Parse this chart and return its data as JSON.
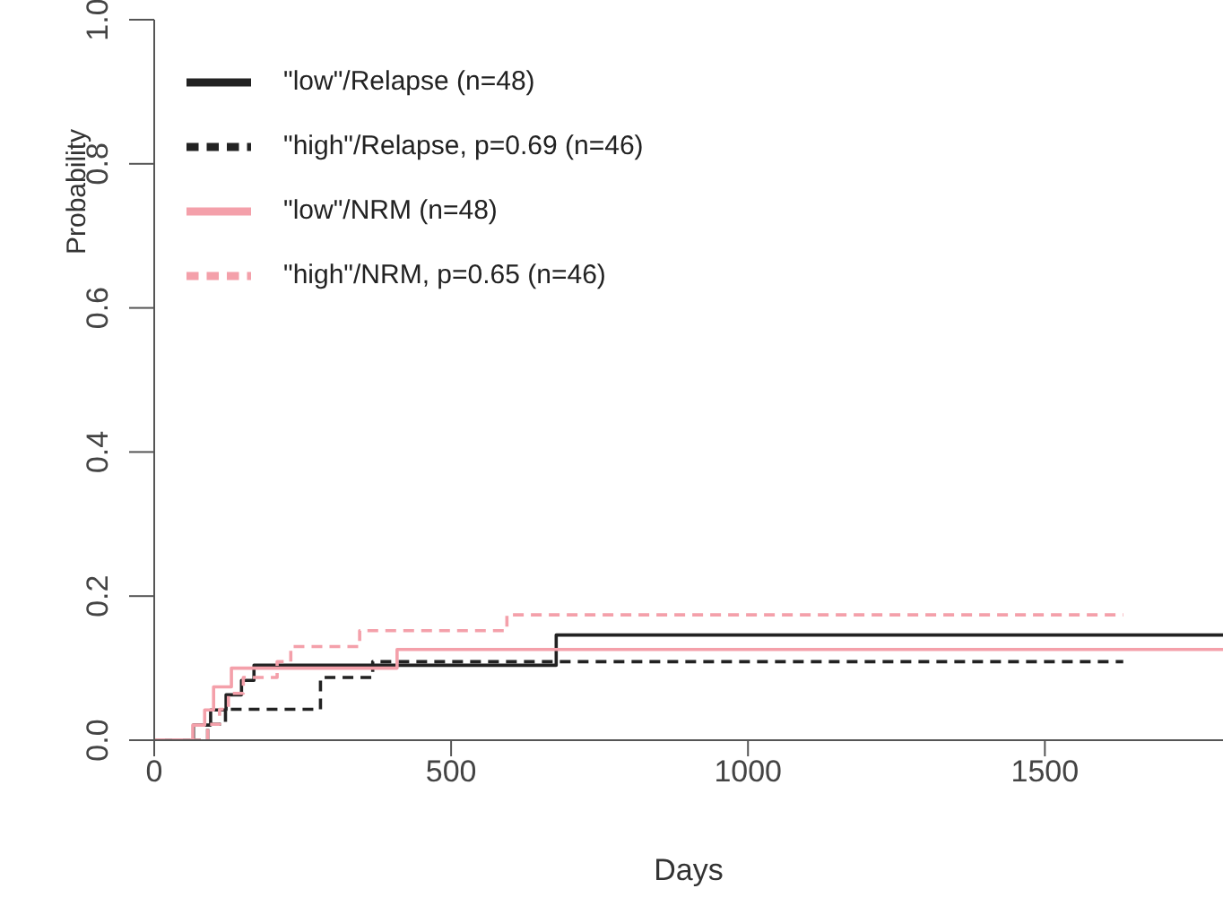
{
  "chart_data": {
    "type": "step",
    "xlabel": "Days",
    "ylabel": "Probability",
    "xlim": [
      0,
      1800
    ],
    "ylim": [
      0,
      1
    ],
    "xticks": [
      0,
      500,
      1000,
      1500
    ],
    "yticks": [
      {
        "value": 0,
        "label": "0.0"
      },
      {
        "value": 0.2,
        "label": "0.2"
      },
      {
        "value": 0.4,
        "label": "0.4"
      },
      {
        "value": 0.6,
        "label": "0.6"
      },
      {
        "value": 0.8,
        "label": "0.8"
      },
      {
        "value": 1,
        "label": "1.0"
      }
    ],
    "grid": false,
    "legend": "top left",
    "marker": "none",
    "series": [
      {
        "name": "\"low\"/Relapse (n=48)",
        "color": "#222222",
        "line_style": "solid",
        "x": [
          0,
          66,
          95,
          121,
          147,
          168,
          677,
          1800
        ],
        "values": [
          0,
          0.021,
          0.042,
          0.063,
          0.083,
          0.104,
          0.146,
          0.146
        ]
      },
      {
        "name": "\"high\"/Relapse,  p=0.69 (n=46)",
        "color": "#222222",
        "line_style": "dashed",
        "x": [
          0,
          90,
          120,
          280,
          368,
          1632
        ],
        "values": [
          0,
          0.022,
          0.043,
          0.087,
          0.109,
          0.109
        ]
      },
      {
        "name": "\"low\"/NRM (n=48)",
        "color": "#f4a0aa",
        "line_style": "solid",
        "x": [
          0,
          65,
          85,
          100,
          130,
          409,
          1800
        ],
        "values": [
          0,
          0.021,
          0.042,
          0.074,
          0.1,
          0.126,
          0.126
        ]
      },
      {
        "name": "\"high\"/NRM,  p=0.65 (n=46)",
        "color": "#f4a0aa",
        "line_style": "dashed",
        "x": [
          0,
          90,
          110,
          125,
          150,
          207,
          230,
          346,
          594,
          1632
        ],
        "values": [
          0,
          0.022,
          0.043,
          0.065,
          0.087,
          0.109,
          0.13,
          0.152,
          0.174,
          0.174
        ]
      }
    ]
  }
}
